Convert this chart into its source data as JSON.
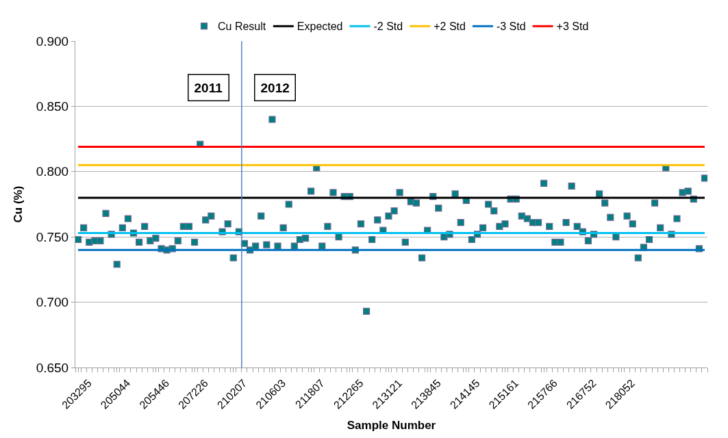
{
  "chart_data": {
    "type": "scatter",
    "xlabel": "Sample Number",
    "ylabel": "Cu (%)",
    "categories": [
      "203295",
      null,
      null,
      null,
      null,
      null,
      null,
      "205044",
      null,
      null,
      null,
      null,
      null,
      null,
      "205446",
      null,
      null,
      null,
      null,
      null,
      null,
      "207226",
      null,
      null,
      null,
      null,
      null,
      null,
      "210207",
      null,
      null,
      null,
      null,
      null,
      null,
      "210603",
      null,
      null,
      null,
      null,
      null,
      null,
      "211807",
      null,
      null,
      null,
      null,
      null,
      null,
      "212265",
      null,
      null,
      null,
      null,
      null,
      null,
      "213121",
      null,
      null,
      null,
      null,
      null,
      null,
      "213845",
      null,
      null,
      null,
      null,
      null,
      null,
      "214145",
      null,
      null,
      null,
      null,
      null,
      null,
      "215161",
      null,
      null,
      null,
      null,
      null,
      null,
      "215766",
      null,
      null,
      null,
      null,
      null,
      null,
      "216752",
      null,
      null,
      null,
      null,
      null,
      null,
      "218052",
      null,
      null,
      null,
      null,
      null,
      null,
      null,
      null,
      null,
      null,
      null,
      null,
      null,
      null,
      null
    ],
    "series": [
      {
        "name": "Cu Result",
        "marker": "square",
        "color": "#008080",
        "values": [
          0.748,
          0.757,
          0.746,
          0.747,
          0.747,
          0.768,
          0.752,
          0.729,
          0.757,
          0.764,
          0.753,
          0.746,
          0.758,
          0.747,
          0.749,
          0.741,
          0.74,
          0.741,
          0.747,
          0.758,
          0.758,
          0.746,
          0.821,
          0.763,
          0.766,
          null,
          0.754,
          0.76,
          0.734,
          0.754,
          0.745,
          0.74,
          0.743,
          0.766,
          0.744,
          0.84,
          0.743,
          0.757,
          0.775,
          0.743,
          0.748,
          0.749,
          0.785,
          0.803,
          0.743,
          0.758,
          0.784,
          0.75,
          0.781,
          0.781,
          0.74,
          0.76,
          0.693,
          0.748,
          0.763,
          0.755,
          0.766,
          0.77,
          0.784,
          0.746,
          0.777,
          0.776,
          0.734,
          0.755,
          0.781,
          0.772,
          0.75,
          0.752,
          0.783,
          0.761,
          0.778,
          0.748,
          0.752,
          0.757,
          0.775,
          0.77,
          0.758,
          0.76,
          0.779,
          0.779,
          0.766,
          0.764,
          0.761,
          0.761,
          0.791,
          0.758,
          0.746,
          0.746,
          0.761,
          0.789,
          0.758,
          0.754,
          0.747,
          0.752,
          0.783,
          0.776,
          0.765,
          0.75,
          null,
          0.766,
          0.76,
          0.734,
          0.742,
          0.748,
          0.776,
          0.757,
          0.803,
          0.752,
          0.764,
          0.784,
          0.785,
          0.779,
          0.741,
          0.795
        ]
      },
      {
        "name": "Expected",
        "type": "line",
        "color": "#000000",
        "values": [
          0.78,
          0.78,
          0.78,
          0.78,
          0.78,
          0.78,
          0.78,
          0.78,
          0.78,
          0.78,
          0.78,
          0.78,
          0.78,
          0.78,
          0.78,
          0.78,
          0.78,
          0.78,
          0.78,
          0.78,
          0.78,
          0.78,
          0.78,
          0.78,
          0.78,
          0.78,
          0.78,
          0.78,
          0.78,
          0.78,
          0.78,
          0.78,
          0.78,
          0.78,
          0.78,
          0.78,
          0.78,
          0.78,
          0.78,
          0.78,
          0.78,
          0.78,
          0.78,
          0.78,
          0.78,
          0.78,
          0.78,
          0.78,
          0.78,
          0.78,
          0.78,
          0.78,
          0.78,
          0.78,
          0.78,
          0.78,
          0.78,
          0.78,
          0.78,
          0.78,
          0.78,
          0.78,
          0.78,
          0.78,
          0.78,
          0.78,
          0.78,
          0.78,
          0.78,
          0.78,
          0.78,
          0.78,
          0.78,
          0.78,
          0.78,
          0.78,
          0.78,
          0.78,
          0.78,
          0.78,
          0.78,
          0.78,
          0.78,
          0.78,
          0.78,
          0.78,
          0.78,
          0.78,
          0.78,
          0.78,
          0.78,
          0.78,
          0.78,
          0.78,
          0.78,
          0.78,
          0.78,
          0.78,
          0.78,
          0.78,
          0.78,
          0.78,
          0.78,
          0.78,
          0.78,
          0.78,
          0.78,
          0.78,
          0.78,
          0.78,
          0.78,
          0.78,
          0.78,
          0.78
        ]
      },
      {
        "name": "-2 Std",
        "type": "line",
        "color": "#00c0f0",
        "values": [
          0.753,
          0.753,
          0.753,
          0.753,
          0.753,
          0.753,
          0.753,
          0.753,
          0.753,
          0.753,
          0.753,
          0.753,
          0.753,
          0.753,
          0.753,
          0.753,
          0.753,
          0.753,
          0.753,
          0.753,
          0.753,
          0.753,
          0.753,
          0.753,
          0.753,
          0.753,
          0.753,
          0.753,
          0.753,
          0.753,
          0.753,
          0.753,
          0.753,
          0.753,
          0.753,
          0.753,
          0.753,
          0.753,
          0.753,
          0.753,
          0.753,
          0.753,
          0.753,
          0.753,
          0.753,
          0.753,
          0.753,
          0.753,
          0.753,
          0.753,
          0.753,
          0.753,
          0.753,
          0.753,
          0.753,
          0.753,
          0.753,
          0.753,
          0.753,
          0.753,
          0.753,
          0.753,
          0.753,
          0.753,
          0.753,
          0.753,
          0.753,
          0.753,
          0.753,
          0.753,
          0.753,
          0.753,
          0.753,
          0.753,
          0.753,
          0.753,
          0.753,
          0.753,
          0.753,
          0.753,
          0.753,
          0.753,
          0.753,
          0.753,
          0.753,
          0.753,
          0.753,
          0.753,
          0.753,
          0.753,
          0.753,
          0.753,
          0.753,
          0.753,
          0.753,
          0.753,
          0.753,
          0.753,
          0.753,
          0.753,
          0.753,
          0.753,
          0.753,
          0.753,
          0.753,
          0.753,
          0.753,
          0.753,
          0.753,
          0.753,
          0.753,
          0.753,
          0.753,
          0.753
        ]
      },
      {
        "name": "+2 Std",
        "type": "line",
        "color": "#ffc000",
        "values": [
          0.805,
          0.805,
          0.805,
          0.805,
          0.805,
          0.805,
          0.805,
          0.805,
          0.805,
          0.805,
          0.805,
          0.805,
          0.805,
          0.805,
          0.805,
          0.805,
          0.805,
          0.805,
          0.805,
          0.805,
          0.805,
          0.805,
          0.805,
          0.805,
          0.805,
          0.805,
          0.805,
          0.805,
          0.805,
          0.805,
          0.805,
          0.805,
          0.805,
          0.805,
          0.805,
          0.805,
          0.805,
          0.805,
          0.805,
          0.805,
          0.805,
          0.805,
          0.805,
          0.805,
          0.805,
          0.805,
          0.805,
          0.805,
          0.805,
          0.805,
          0.805,
          0.805,
          0.805,
          0.805,
          0.805,
          0.805,
          0.805,
          0.805,
          0.805,
          0.805,
          0.805,
          0.805,
          0.805,
          0.805,
          0.805,
          0.805,
          0.805,
          0.805,
          0.805,
          0.805,
          0.805,
          0.805,
          0.805,
          0.805,
          0.805,
          0.805,
          0.805,
          0.805,
          0.805,
          0.805,
          0.805,
          0.805,
          0.805,
          0.805,
          0.805,
          0.805,
          0.805,
          0.805,
          0.805,
          0.805,
          0.805,
          0.805,
          0.805,
          0.805,
          0.805,
          0.805,
          0.805,
          0.805,
          0.805,
          0.805,
          0.805,
          0.805,
          0.805,
          0.805,
          0.805,
          0.805,
          0.805,
          0.805,
          0.805,
          0.805,
          0.805,
          0.805,
          0.805,
          0.805
        ]
      },
      {
        "name": "-3 Std",
        "type": "line",
        "color": "#0070c0",
        "values": [
          0.74,
          0.74,
          0.74,
          0.74,
          0.74,
          0.74,
          0.74,
          0.74,
          0.74,
          0.74,
          0.74,
          0.74,
          0.74,
          0.74,
          0.74,
          0.74,
          0.74,
          0.74,
          0.74,
          0.74,
          0.74,
          0.74,
          0.74,
          0.74,
          0.74,
          0.74,
          0.74,
          0.74,
          0.74,
          0.74,
          0.74,
          0.74,
          0.74,
          0.74,
          0.74,
          0.74,
          0.74,
          0.74,
          0.74,
          0.74,
          0.74,
          0.74,
          0.74,
          0.74,
          0.74,
          0.74,
          0.74,
          0.74,
          0.74,
          0.74,
          0.74,
          0.74,
          0.74,
          0.74,
          0.74,
          0.74,
          0.74,
          0.74,
          0.74,
          0.74,
          0.74,
          0.74,
          0.74,
          0.74,
          0.74,
          0.74,
          0.74,
          0.74,
          0.74,
          0.74,
          0.74,
          0.74,
          0.74,
          0.74,
          0.74,
          0.74,
          0.74,
          0.74,
          0.74,
          0.74,
          0.74,
          0.74,
          0.74,
          0.74,
          0.74,
          0.74,
          0.74,
          0.74,
          0.74,
          0.74,
          0.74,
          0.74,
          0.74,
          0.74,
          0.74,
          0.74,
          0.74,
          0.74,
          0.74,
          0.74,
          0.74,
          0.74,
          0.74,
          0.74,
          0.74,
          0.74,
          0.74,
          0.74,
          0.74,
          0.74,
          0.74,
          0.74,
          0.74,
          0.74
        ]
      },
      {
        "name": "+3 Std",
        "type": "line",
        "color": "#ff0000",
        "values": [
          0.819,
          0.819,
          0.819,
          0.819,
          0.819,
          0.819,
          0.819,
          0.819,
          0.819,
          0.819,
          0.819,
          0.819,
          0.819,
          0.819,
          0.819,
          0.819,
          0.819,
          0.819,
          0.819,
          0.819,
          0.819,
          0.819,
          0.819,
          0.819,
          0.819,
          0.819,
          0.819,
          0.819,
          0.819,
          0.819,
          0.819,
          0.819,
          0.819,
          0.819,
          0.819,
          0.819,
          0.819,
          0.819,
          0.819,
          0.819,
          0.819,
          0.819,
          0.819,
          0.819,
          0.819,
          0.819,
          0.819,
          0.819,
          0.819,
          0.819,
          0.819,
          0.819,
          0.819,
          0.819,
          0.819,
          0.819,
          0.819,
          0.819,
          0.819,
          0.819,
          0.819,
          0.819,
          0.819,
          0.819,
          0.819,
          0.819,
          0.819,
          0.819,
          0.819,
          0.819,
          0.819,
          0.819,
          0.819,
          0.819,
          0.819,
          0.819,
          0.819,
          0.819,
          0.819,
          0.819,
          0.819,
          0.819,
          0.819,
          0.819,
          0.819,
          0.819,
          0.819,
          0.819,
          0.819,
          0.819,
          0.819,
          0.819,
          0.819,
          0.819,
          0.819,
          0.819,
          0.819,
          0.819,
          0.819,
          0.819,
          0.819,
          0.819,
          0.819,
          0.819,
          0.819,
          0.819,
          0.819,
          0.819,
          0.819,
          0.819,
          0.819,
          0.819,
          0.819,
          0.819
        ]
      }
    ],
    "ylim": [
      0.65,
      0.9
    ],
    "yticks": [
      {
        "value": 0.65,
        "label": "0.650"
      },
      {
        "value": 0.7,
        "label": "0.700"
      },
      {
        "value": 0.75,
        "label": "0.750"
      },
      {
        "value": 0.8,
        "label": "0.800"
      },
      {
        "value": 0.85,
        "label": "0.850"
      },
      {
        "value": 0.9,
        "label": "0.900"
      }
    ],
    "annotations": [
      "2011",
      "2012"
    ],
    "grid": "y",
    "legend": "top",
    "line_style": "solid"
  }
}
